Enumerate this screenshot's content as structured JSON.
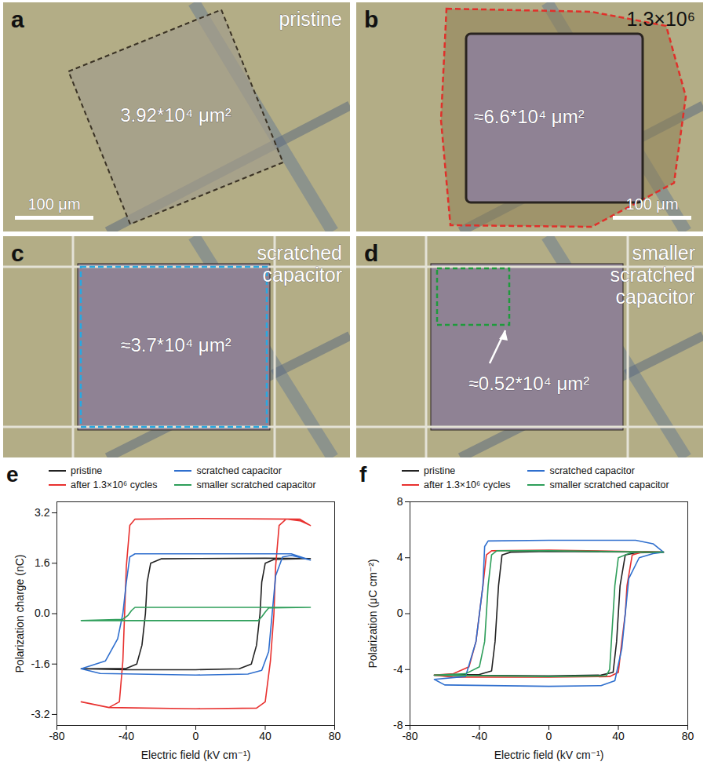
{
  "images": [
    {
      "letter": "a",
      "label": "pristine",
      "area_label": "3.92*10⁴ μm²",
      "scale_bar": "100 μm"
    },
    {
      "letter": "b",
      "label": "1.3×10⁶",
      "area_label": "≈6.6*10⁴ μm²",
      "scale_bar": "100 μm"
    },
    {
      "letter": "c",
      "label": "scratched capacitor",
      "area_label": "≈3.7*10⁴ μm²"
    },
    {
      "letter": "d",
      "label": "smaller scratched capacitor",
      "area_label": "≈0.52*10⁴ μm²"
    }
  ],
  "chart_data": [
    {
      "type": "line",
      "letter": "e",
      "x_label": "Electric field (kV cm⁻¹)",
      "y_label": "Polarization charge (nC)",
      "xlim": [
        -80,
        80
      ],
      "xticks": [
        -80,
        -40,
        0,
        40,
        80
      ],
      "ylim": [
        -3.55,
        3.55
      ],
      "yticks": [
        -3.2,
        -1.6,
        {
          "value": 0,
          "label": "0.0"
        },
        1.6,
        3.2
      ],
      "legend": "top",
      "series": [
        {
          "name": "pristine",
          "color": "#222222",
          "x": [
            -66,
            -40,
            0,
            25,
            32,
            35,
            37,
            38,
            40,
            45,
            66,
            40,
            0,
            -20,
            -26,
            -28,
            -29,
            -31,
            -34,
            -40,
            -66
          ],
          "values": [
            -1.75,
            -1.78,
            -1.78,
            -1.75,
            -1.6,
            -1.0,
            0,
            1.0,
            1.6,
            1.72,
            1.75,
            1.76,
            1.75,
            1.74,
            1.6,
            1.0,
            0,
            -1.0,
            -1.6,
            -1.74,
            -1.75
          ]
        },
        {
          "name": "after 1.3×10⁶ cycles",
          "color": "#e8312f",
          "x": [
            -66,
            -50,
            0,
            35,
            40,
            43,
            45,
            46,
            48,
            52,
            60,
            66,
            60,
            0,
            -35,
            -38,
            -40,
            -41,
            -42,
            -44,
            -50,
            -66
          ],
          "values": [
            -2.8,
            -2.98,
            -3.02,
            -3.0,
            -2.8,
            -1.5,
            0,
            1.5,
            2.8,
            3.0,
            2.95,
            2.8,
            3.0,
            3.02,
            3.0,
            2.8,
            1.5,
            0,
            -1.5,
            -2.8,
            -2.98,
            -2.8
          ]
        },
        {
          "name": "scratched capacitor",
          "color": "#2f6fce",
          "x": [
            -66,
            -55,
            0,
            30,
            38,
            42,
            44,
            46,
            50,
            55,
            66,
            55,
            0,
            -35,
            -38,
            -40,
            -42,
            -45,
            -52,
            -66
          ],
          "values": [
            -1.75,
            -1.9,
            -1.95,
            -1.92,
            -1.8,
            -1.2,
            0,
            1.2,
            1.8,
            1.85,
            1.7,
            1.9,
            1.9,
            1.9,
            1.8,
            1.0,
            0,
            -0.8,
            -1.5,
            -1.75
          ]
        },
        {
          "name": "smaller scratched capacitor",
          "color": "#2e9e5a",
          "x": [
            -66,
            0,
            36,
            38,
            40,
            42,
            66,
            0,
            -35,
            -37,
            -39,
            -42,
            -66
          ],
          "values": [
            -0.22,
            -0.22,
            -0.22,
            -0.1,
            0.05,
            0.18,
            0.2,
            0.2,
            0.2,
            0.1,
            -0.05,
            -0.18,
            -0.22
          ]
        }
      ]
    },
    {
      "type": "line",
      "letter": "f",
      "x_label": "Electric field (kV cm⁻¹)",
      "y_label": "Polarization (μC cm⁻²)",
      "xlim": [
        -80,
        80
      ],
      "xticks": [
        -80,
        -40,
        0,
        40,
        80
      ],
      "ylim": [
        -8,
        8
      ],
      "yticks": [
        -8,
        -4,
        0,
        4,
        8
      ],
      "legend": "top",
      "series": [
        {
          "name": "pristine",
          "color": "#222222",
          "x": [
            -66,
            0,
            30,
            37,
            39,
            40,
            41,
            44,
            50,
            66,
            0,
            -22,
            -27,
            -29,
            -30,
            -31,
            -33,
            -40,
            -66
          ],
          "values": [
            -4.4,
            -4.45,
            -4.4,
            -4.2,
            -2,
            0,
            2,
            4.2,
            4.35,
            4.4,
            4.45,
            4.4,
            4.2,
            2,
            0,
            -2,
            -4.1,
            -4.35,
            -4.4
          ]
        },
        {
          "name": "after 1.3×10⁶ cycles",
          "color": "#e8312f",
          "x": [
            -66,
            -55,
            0,
            35,
            40,
            42,
            44,
            45,
            48,
            55,
            66,
            0,
            -33,
            -36,
            -38,
            -40,
            -42,
            -46,
            -55,
            -66
          ],
          "values": [
            -4.4,
            -4.55,
            -4.55,
            -4.5,
            -4.2,
            -2,
            0,
            2,
            4.2,
            4.45,
            4.4,
            4.55,
            4.5,
            4.2,
            2,
            0,
            -2,
            -3.8,
            -4.3,
            -4.4
          ]
        },
        {
          "name": "scratched capacitor",
          "color": "#2f6fce",
          "x": [
            -66,
            -60,
            0,
            30,
            38,
            42,
            44,
            46,
            52,
            60,
            66,
            60,
            50,
            0,
            -35,
            -37,
            -38,
            -40,
            -42,
            -48,
            -66
          ],
          "values": [
            -4.7,
            -5.1,
            -5.2,
            -5.15,
            -4.8,
            -2.5,
            0,
            2.5,
            4.0,
            4.3,
            4.4,
            5.0,
            5.25,
            5.25,
            5.2,
            4.8,
            2,
            0,
            -2,
            -4.5,
            -4.7
          ]
        },
        {
          "name": "smaller scratched capacitor",
          "color": "#2e9e5a",
          "x": [
            -66,
            0,
            33,
            35,
            36,
            37,
            38,
            40,
            48,
            66,
            0,
            -30,
            -33,
            -35,
            -36,
            -37,
            -40,
            -48,
            -66
          ],
          "values": [
            -4.4,
            -4.5,
            -4.45,
            -4.0,
            -2,
            0,
            2,
            4.0,
            4.4,
            4.4,
            4.5,
            4.5,
            4.2,
            2,
            0,
            -2,
            -3.8,
            -4.3,
            -4.4
          ]
        }
      ]
    }
  ]
}
